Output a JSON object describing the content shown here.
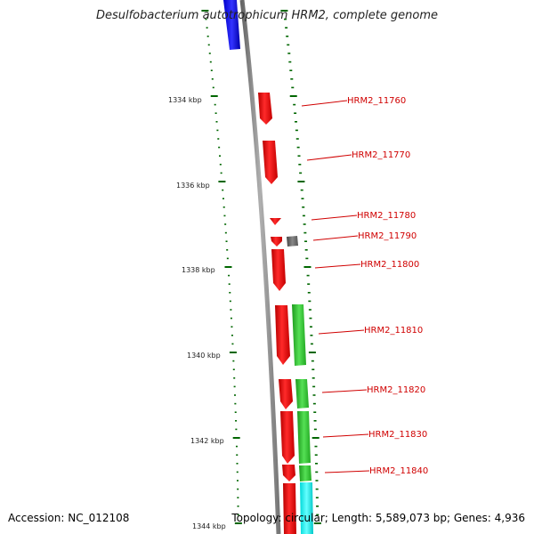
{
  "title": "Desulfobacterium autotrophicum HRM2, complete genome",
  "accession": "Accession: NC_012108",
  "summary": "Topology: circular; Length: 5,589,073 bp; Genes: 4,936",
  "colors": {
    "backbone": "#8a8a8a",
    "forward_gene": "#ff0000",
    "blue_feature": "#0000ff",
    "green_feature": "#33cc33",
    "cyan_feature": "#00ffff",
    "gray_feature": "#666666",
    "tick": "#006600",
    "label": "#d00000"
  },
  "scale_labels": [
    "1334 kbp",
    "1336 kbp",
    "1338 kbp",
    "1340 kbp",
    "1342 kbp",
    "1344 kbp"
  ],
  "genes": [
    {
      "id": "HRM2_11760"
    },
    {
      "id": "HRM2_11770"
    },
    {
      "id": "HRM2_11780"
    },
    {
      "id": "HRM2_11790"
    },
    {
      "id": "HRM2_11800"
    },
    {
      "id": "HRM2_11810"
    },
    {
      "id": "HRM2_11820"
    },
    {
      "id": "HRM2_11830"
    },
    {
      "id": "HRM2_11840"
    }
  ]
}
